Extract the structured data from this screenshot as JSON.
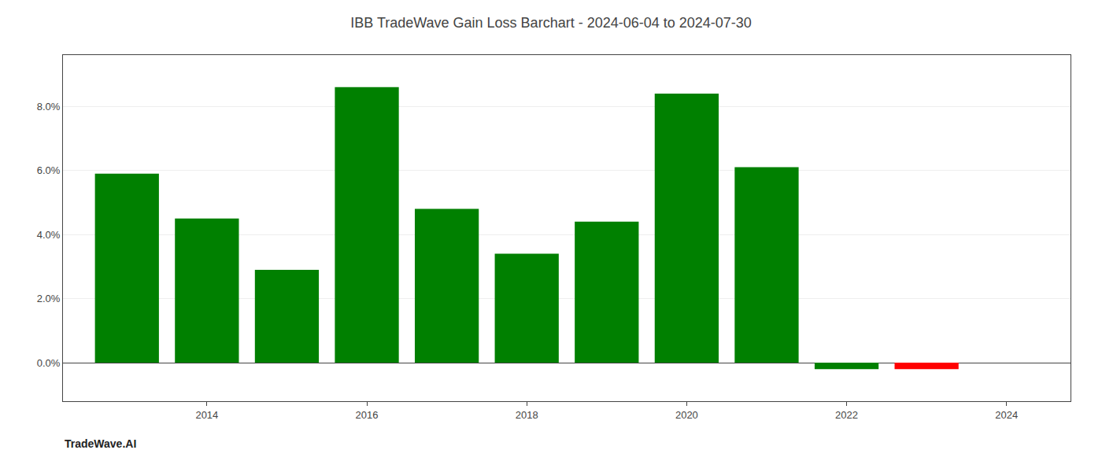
{
  "chart_data": {
    "type": "bar",
    "title": "IBB TradeWave Gain Loss Barchart - 2024-06-04 to 2024-07-30",
    "annotations": [
      "TradeWave.AI"
    ],
    "x": [
      2013,
      2014,
      2015,
      2016,
      2017,
      2018,
      2019,
      2020,
      2021,
      2022,
      2023
    ],
    "values": [
      0.059,
      0.045,
      0.029,
      0.086,
      0.048,
      0.034,
      0.044,
      0.084,
      0.061,
      -0.002,
      -0.002
    ],
    "colors": [
      "#008000",
      "#008000",
      "#008000",
      "#008000",
      "#008000",
      "#008000",
      "#008000",
      "#008000",
      "#008000",
      "#008000",
      "#ff0000"
    ],
    "xlim": [
      2012.2,
      2024.8
    ],
    "xticks": [
      2014,
      2016,
      2018,
      2020,
      2022,
      2024
    ],
    "ylim": [
      -0.012,
      0.096
    ],
    "yticks": [
      {
        "value": 0.0,
        "label": "0.0%"
      },
      {
        "value": 0.02,
        "label": "2.0%"
      },
      {
        "value": 0.04,
        "label": "4.0%"
      },
      {
        "value": 0.06,
        "label": "6.0%"
      },
      {
        "value": 0.08,
        "label": "8.0%"
      }
    ],
    "grid": true
  }
}
